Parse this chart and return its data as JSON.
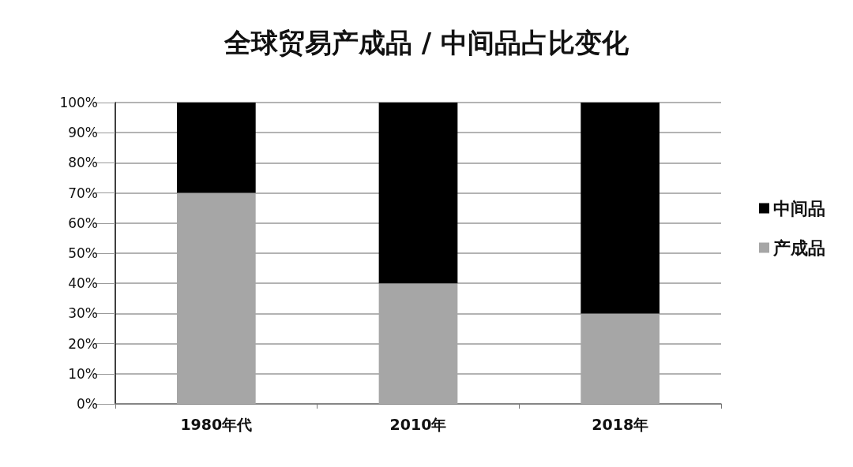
{
  "chart_data": {
    "type": "bar",
    "title": "全球贸易产成品 / 中间品占比变化",
    "categories": [
      "1980年代",
      "2010年",
      "2018年"
    ],
    "series": [
      {
        "name": "产成品",
        "color": "#a6a6a6",
        "values": [
          70,
          40,
          30
        ]
      },
      {
        "name": "中间品",
        "color": "#000000",
        "values": [
          30,
          60,
          70
        ]
      }
    ],
    "stacked": true,
    "ylim": [
      0,
      100
    ],
    "yticks": [
      {
        "value": 0,
        "label": "0%"
      },
      {
        "value": 10,
        "label": "10%"
      },
      {
        "value": 20,
        "label": "20%"
      },
      {
        "value": 30,
        "label": "30%"
      },
      {
        "value": 40,
        "label": "40%"
      },
      {
        "value": 50,
        "label": "50%"
      },
      {
        "value": 60,
        "label": "60%"
      },
      {
        "value": 70,
        "label": "70%"
      },
      {
        "value": 80,
        "label": "80%"
      },
      {
        "value": 90,
        "label": "90%"
      },
      {
        "value": 100,
        "label": "100%"
      }
    ],
    "grid": "y",
    "legend": "right"
  }
}
